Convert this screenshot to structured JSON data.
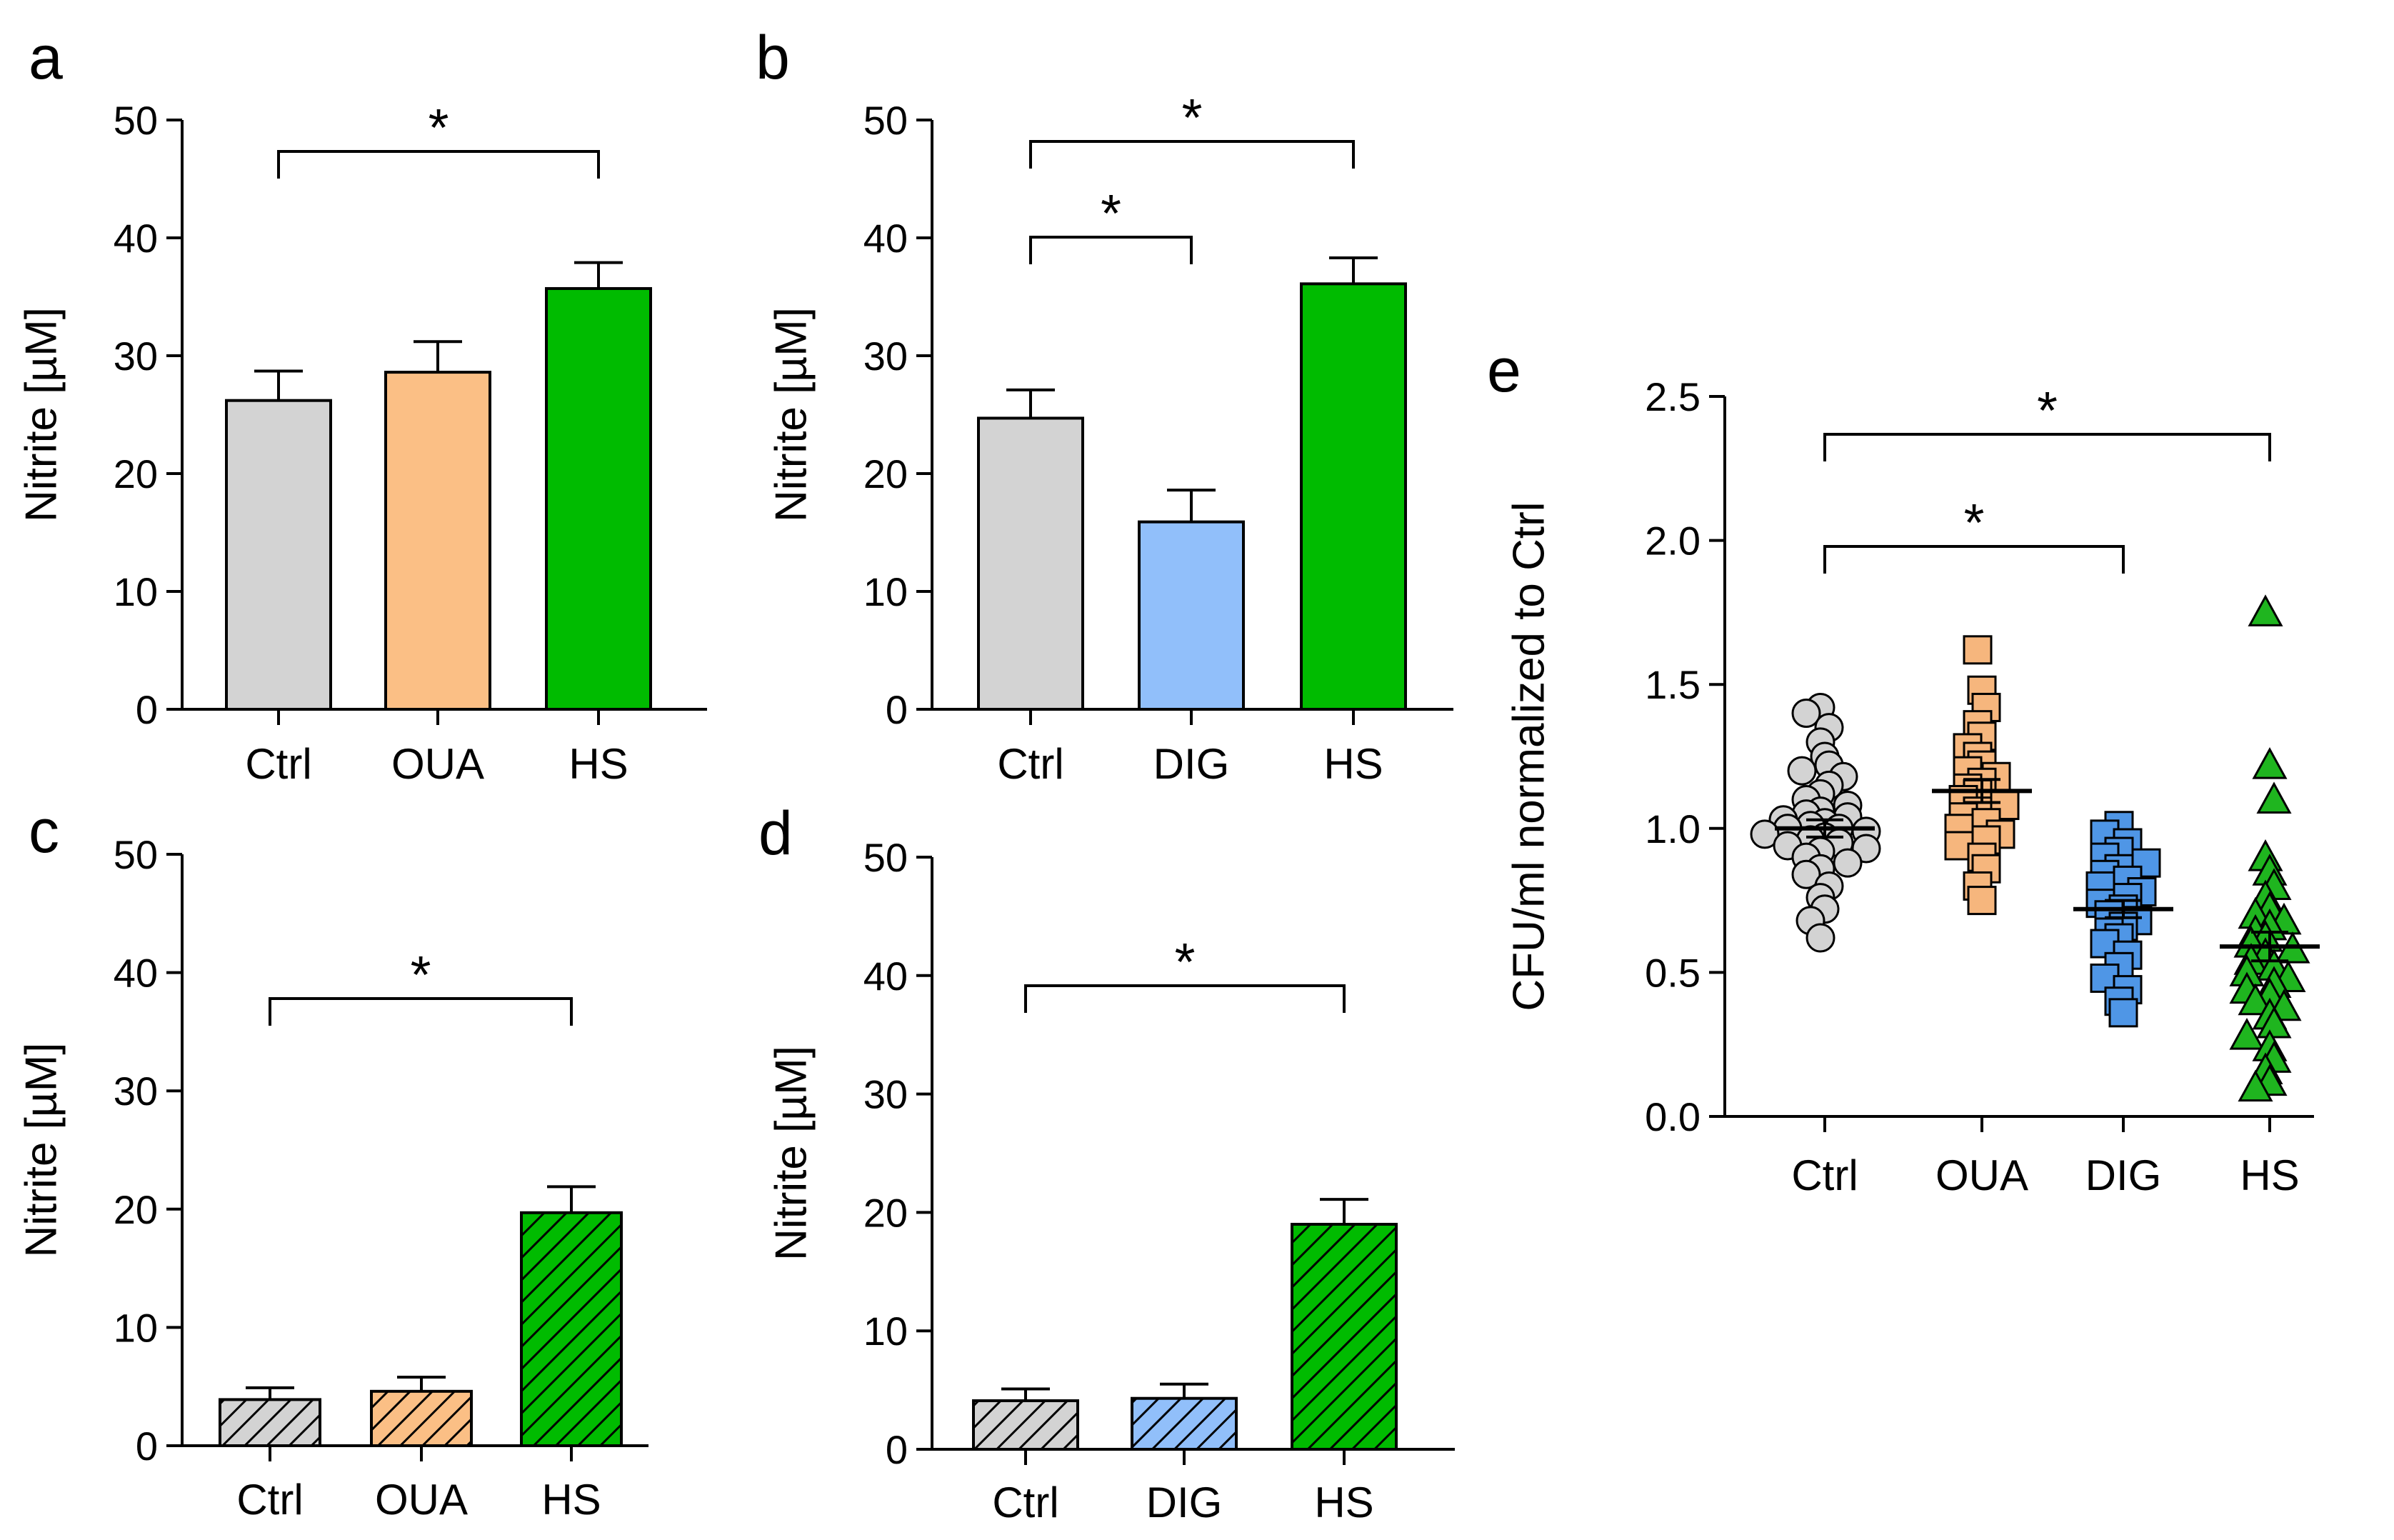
{
  "chart_data": [
    {
      "panel": "a",
      "type": "bar",
      "ylabel": "Nitrite [µM]",
      "ylim": [
        0,
        50
      ],
      "yticks": [
        0,
        10,
        20,
        30,
        40,
        50
      ],
      "categories": [
        "Ctrl",
        "OUA",
        "HS"
      ],
      "values": [
        26.2,
        28.6,
        35.7
      ],
      "errors": [
        2.5,
        2.6,
        2.2
      ],
      "colors": [
        "#d3d3d3",
        "#fbbf85",
        "#00bb00"
      ],
      "hatched": [
        false,
        false,
        false
      ],
      "significance": [
        {
          "from": 0,
          "to": 2,
          "label": "*"
        }
      ]
    },
    {
      "panel": "b",
      "type": "bar",
      "ylabel": "Nitrite [µM]",
      "ylim": [
        0,
        50
      ],
      "yticks": [
        0,
        10,
        20,
        30,
        40,
        50
      ],
      "categories": [
        "Ctrl",
        "DIG",
        "HS"
      ],
      "values": [
        24.7,
        15.9,
        36.1
      ],
      "errors": [
        2.4,
        2.7,
        2.2
      ],
      "colors": [
        "#d3d3d3",
        "#91bffa",
        "#00bb00"
      ],
      "hatched": [
        false,
        false,
        false
      ],
      "significance": [
        {
          "from": 0,
          "to": 1,
          "label": "*"
        },
        {
          "from": 0,
          "to": 2,
          "label": "*"
        }
      ]
    },
    {
      "panel": "c",
      "type": "bar",
      "ylabel": "Nitrite [µM]",
      "ylim": [
        0,
        50
      ],
      "yticks": [
        0,
        10,
        20,
        30,
        40,
        50
      ],
      "categories": [
        "Ctrl",
        "OUA",
        "HS"
      ],
      "values": [
        3.9,
        4.6,
        19.7
      ],
      "errors": [
        1.0,
        1.2,
        2.2
      ],
      "colors": [
        "#d3d3d3",
        "#fbbf85",
        "#00bb00"
      ],
      "hatched": [
        true,
        true,
        true
      ],
      "significance": [
        {
          "from": 0,
          "to": 2,
          "label": "*"
        }
      ]
    },
    {
      "panel": "d",
      "type": "bar",
      "ylabel": "Nitrite [µM]",
      "ylim": [
        0,
        50
      ],
      "yticks": [
        0,
        10,
        20,
        30,
        40,
        50
      ],
      "categories": [
        "Ctrl",
        "DIG",
        "HS"
      ],
      "values": [
        4.1,
        4.3,
        19.0
      ],
      "errors": [
        1.0,
        1.2,
        2.1
      ],
      "colors": [
        "#d3d3d3",
        "#91bffa",
        "#00bb00"
      ],
      "hatched": [
        true,
        true,
        true
      ],
      "significance": [
        {
          "from": 0,
          "to": 2,
          "label": "*"
        }
      ]
    },
    {
      "panel": "e",
      "type": "scatter",
      "ylabel": "CFU/ml normalized to Ctrl",
      "ylim": [
        0,
        2.5
      ],
      "yticks": [
        0.0,
        0.5,
        1.0,
        1.5,
        2.0,
        2.5
      ],
      "ytick_labels": [
        "0.0",
        "0.5",
        "1.0",
        "1.5",
        "2.0",
        "2.5"
      ],
      "categories": [
        "Ctrl",
        "OUA",
        "DIG",
        "HS"
      ],
      "markers": [
        "circle",
        "square",
        "square",
        "triangle"
      ],
      "colors": [
        "#d3d3d3",
        "#f6b67d",
        "#4f96e6",
        "#1fb51f"
      ],
      "means": [
        1.0,
        1.13,
        0.72,
        0.59
      ],
      "sem": [
        0.03,
        0.04,
        0.03,
        0.05
      ],
      "points": [
        [
          1.42,
          1.4,
          1.35,
          1.3,
          1.25,
          1.22,
          1.2,
          1.18,
          1.15,
          1.12,
          1.1,
          1.08,
          1.06,
          1.05,
          1.04,
          1.03,
          1.02,
          1.01,
          1.0,
          1.0,
          0.99,
          0.98,
          0.97,
          0.96,
          0.95,
          0.94,
          0.93,
          0.92,
          0.9,
          0.88,
          0.86,
          0.84,
          0.8,
          0.76,
          0.72,
          0.68,
          0.62
        ],
        [
          1.62,
          1.48,
          1.42,
          1.36,
          1.32,
          1.28,
          1.25,
          1.22,
          1.2,
          1.18,
          1.16,
          1.14,
          1.12,
          1.1,
          1.08,
          1.06,
          1.04,
          1.02,
          1.0,
          0.98,
          0.96,
          0.94,
          0.9,
          0.86,
          0.8,
          0.75
        ],
        [
          1.01,
          0.98,
          0.95,
          0.92,
          0.9,
          0.88,
          0.86,
          0.84,
          0.82,
          0.8,
          0.78,
          0.76,
          0.74,
          0.72,
          0.7,
          0.68,
          0.66,
          0.64,
          0.62,
          0.6,
          0.56,
          0.52,
          0.48,
          0.44,
          0.4,
          0.36
        ],
        [
          1.75,
          1.22,
          1.1,
          0.9,
          0.85,
          0.8,
          0.76,
          0.72,
          0.7,
          0.68,
          0.66,
          0.64,
          0.62,
          0.6,
          0.58,
          0.56,
          0.54,
          0.52,
          0.5,
          0.48,
          0.46,
          0.44,
          0.42,
          0.4,
          0.38,
          0.35,
          0.32,
          0.28,
          0.24,
          0.2,
          0.16,
          0.12,
          0.1
        ]
      ],
      "significance": [
        {
          "from": 0,
          "to": 2,
          "label": "*"
        },
        {
          "from": 0,
          "to": 3,
          "label": "*"
        }
      ]
    }
  ]
}
